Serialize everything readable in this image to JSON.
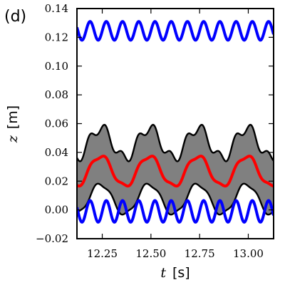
{
  "chart_data": {
    "type": "line",
    "panel_label": "(d)",
    "xlabel_symbol": "t",
    "xlabel_unit": "[s]",
    "ylabel_symbol": "z",
    "ylabel_unit": "[m]",
    "xlim": [
      12.12,
      13.13
    ],
    "ylim": [
      -0.02,
      0.14
    ],
    "x_ticks": [
      12.25,
      12.5,
      12.75,
      13.0
    ],
    "x_tick_labels": [
      "12.25",
      "12.50",
      "12.75",
      "13.00"
    ],
    "y_ticks": [
      -0.02,
      0.0,
      0.02,
      0.04,
      0.06,
      0.08,
      0.1,
      0.12,
      0.14
    ],
    "y_tick_labels": [
      "−0.02",
      "0.00",
      "0.02",
      "0.04",
      "0.06",
      "0.08",
      "0.10",
      "0.12",
      "0.14"
    ],
    "grid": false,
    "series": [
      {
        "role": "upper-oscillation",
        "color": "#0000ff",
        "mean": 0.1245,
        "amplitude": 0.0065,
        "frequency_hz": 12.0,
        "phase": 0.0
      },
      {
        "role": "lower-oscillation",
        "color": "#0000ff",
        "mean": -0.001,
        "amplitude": 0.0075,
        "frequency_hz": 12.0,
        "phase": 0.0
      },
      {
        "role": "center-line",
        "color": "#ff0000",
        "mean": 0.027,
        "amplitude": 0.0105,
        "frequency_hz": 4.0,
        "phase": 1.8,
        "ripple_amplitude": 0.0015,
        "ripple_frequency_hz": 12.0
      },
      {
        "role": "envelope-band",
        "fill_color": "#808080",
        "edge_color": "#000000",
        "half_width": 0.0195,
        "ripple_amplitude": 0.0025,
        "ripple_frequency_hz": 12.0
      }
    ]
  }
}
